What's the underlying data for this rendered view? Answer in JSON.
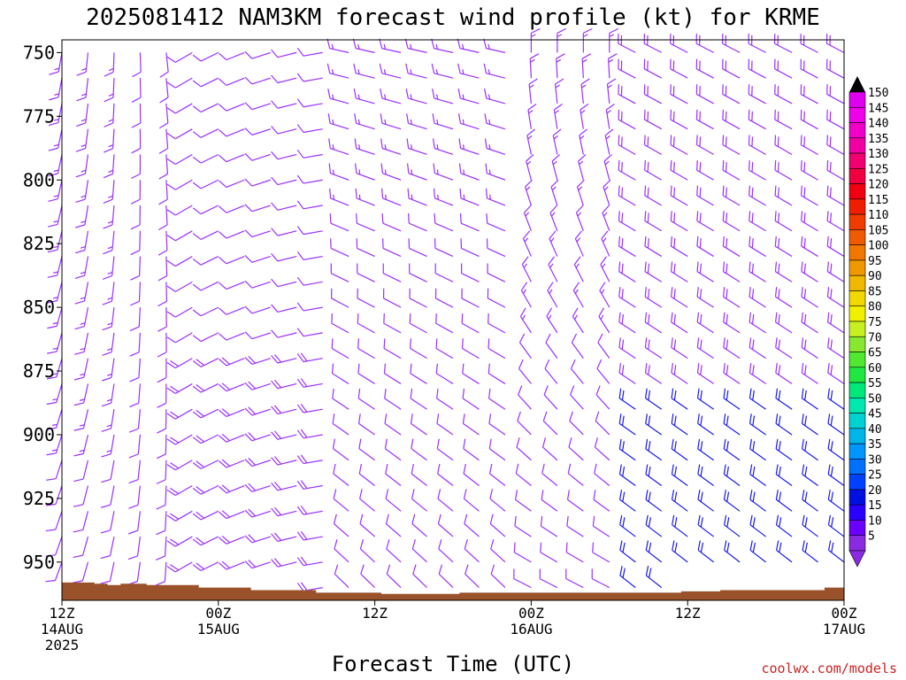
{
  "title": "2025081412 NAM3KM forecast wind profile (kt) for KRME",
  "xlabel": "Forecast Time (UTC)",
  "credit": "coolwx.com/models",
  "colors": {
    "terrain": "#99522a",
    "purple": "#9b30ff",
    "blue": "#1a1aee",
    "credit": "#cc2222"
  },
  "chart_data": {
    "type": "wind-barb-profile",
    "y_axis": {
      "ticks": [
        750,
        775,
        800,
        825,
        850,
        875,
        900,
        925,
        950
      ],
      "range_hpa": [
        745,
        965
      ]
    },
    "x_axis": {
      "range_hours": [
        0,
        60
      ],
      "ticks": [
        {
          "hour": 0,
          "line1": "12Z",
          "line2": "14AUG",
          "line3": "2025"
        },
        {
          "hour": 12,
          "line1": "00Z",
          "line2": "15AUG",
          "line3": ""
        },
        {
          "hour": 24,
          "line1": "12Z",
          "line2": "",
          "line3": ""
        },
        {
          "hour": 36,
          "line1": "00Z",
          "line2": "16AUG",
          "line3": ""
        },
        {
          "hour": 48,
          "line1": "12Z",
          "line2": "",
          "line3": ""
        },
        {
          "hour": 60,
          "line1": "00Z",
          "line2": "17AUG",
          "line3": ""
        }
      ]
    },
    "colorbar": {
      "values": [
        5,
        10,
        15,
        20,
        25,
        30,
        35,
        40,
        45,
        50,
        55,
        60,
        65,
        70,
        75,
        80,
        85,
        90,
        95,
        100,
        105,
        110,
        115,
        120,
        125,
        130,
        135,
        140,
        145,
        150
      ],
      "colors": [
        "#8a2be2",
        "#6a00ff",
        "#2a00ff",
        "#0010e0",
        "#0040ff",
        "#0070ff",
        "#0095ff",
        "#00b5e8",
        "#00d2d2",
        "#00e8b0",
        "#00e87a",
        "#20e840",
        "#50e830",
        "#88e830",
        "#c8f020",
        "#f0f000",
        "#f0d800",
        "#f0b800",
        "#f09800",
        "#f07800",
        "#f05a00",
        "#f03c00",
        "#f01e00",
        "#f00010",
        "#f00040",
        "#f00070",
        "#f000a0",
        "#f000c8",
        "#f000e8",
        "#e000f0"
      ]
    },
    "surface_pressure_hpa": [
      [
        0,
        958
      ],
      [
        2.5,
        958.5
      ],
      [
        3.5,
        959
      ],
      [
        4.5,
        958.5
      ],
      [
        6.5,
        959
      ],
      [
        10.5,
        960
      ],
      [
        14.5,
        961
      ],
      [
        19.5,
        962
      ],
      [
        24.5,
        962.5
      ],
      [
        30.5,
        962
      ],
      [
        45.5,
        962
      ],
      [
        47.5,
        961.5
      ],
      [
        50.5,
        961
      ],
      [
        58.5,
        960
      ]
    ],
    "wind_regimes": {
      "time_step_hours": 2,
      "pressure_step_hpa": 10
    }
  }
}
